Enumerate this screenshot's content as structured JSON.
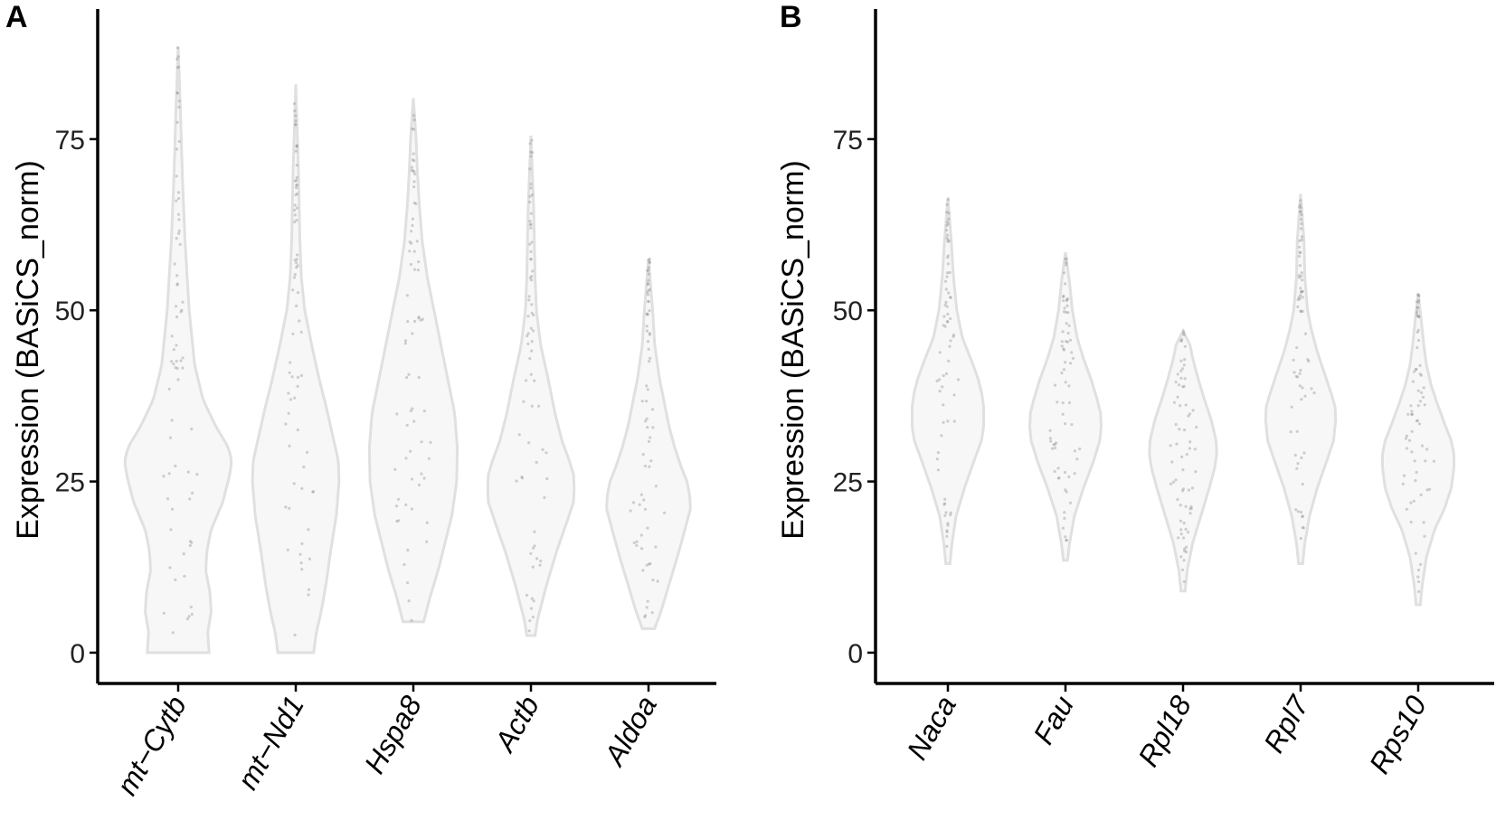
{
  "chart_data": [
    {
      "type": "violin",
      "panel_label": "A",
      "ylabel": "Expression (BASiCS_norm)",
      "yticks": [
        0,
        25,
        50,
        75
      ],
      "ylim": [
        -4.5,
        94
      ],
      "colors": {
        "fill": "#f7f7f7",
        "outline": "#e0e0e0",
        "points": "#9a9a9a"
      },
      "categories": [
        "mt−Cytb",
        "mt−Nd1",
        "Hspa8",
        "Actb",
        "Aldoa"
      ],
      "series": [
        {
          "min": 0,
          "max": 88.5,
          "profile": [
            [
              0,
              4.5
            ],
            [
              3,
              4.3
            ],
            [
              6,
              4.8
            ],
            [
              9,
              4.6
            ],
            [
              12,
              4.0
            ],
            [
              15,
              4.2
            ],
            [
              18,
              4.8
            ],
            [
              22,
              6.5
            ],
            [
              26,
              7.5
            ],
            [
              28,
              7.8
            ],
            [
              30,
              7.3
            ],
            [
              33,
              5.5
            ],
            [
              37,
              3.6
            ],
            [
              42,
              2.4
            ],
            [
              50,
              1.6
            ],
            [
              60,
              1.0
            ],
            [
              70,
              0.6
            ],
            [
              80,
              0.3
            ],
            [
              88.5,
              0
            ]
          ]
        },
        {
          "min": 0,
          "max": 83,
          "profile": [
            [
              0,
              2.6
            ],
            [
              3,
              3.0
            ],
            [
              6,
              3.7
            ],
            [
              10,
              4.4
            ],
            [
              15,
              5.1
            ],
            [
              20,
              5.9
            ],
            [
              25,
              6.3
            ],
            [
              28,
              6.2
            ],
            [
              32,
              5.3
            ],
            [
              36,
              4.4
            ],
            [
              40,
              3.4
            ],
            [
              45,
              2.3
            ],
            [
              50,
              1.3
            ],
            [
              55,
              0.8
            ],
            [
              60,
              0.6
            ],
            [
              70,
              0.4
            ],
            [
              83,
              0
            ]
          ]
        },
        {
          "min": 4.5,
          "max": 81,
          "profile": [
            [
              4.5,
              1.5
            ],
            [
              8,
              2.4
            ],
            [
              12,
              3.6
            ],
            [
              16,
              4.6
            ],
            [
              20,
              5.6
            ],
            [
              25,
              6.3
            ],
            [
              30,
              6.4
            ],
            [
              35,
              6.0
            ],
            [
              40,
              5.0
            ],
            [
              45,
              4.0
            ],
            [
              50,
              3.0
            ],
            [
              55,
              2.0
            ],
            [
              60,
              1.3
            ],
            [
              65,
              0.9
            ],
            [
              70,
              0.6
            ],
            [
              75,
              0.4
            ],
            [
              81,
              0
            ]
          ]
        },
        {
          "min": 2.5,
          "max": 75.5,
          "profile": [
            [
              2.5,
              0.6
            ],
            [
              5,
              1.0
            ],
            [
              10,
              2.3
            ],
            [
              15,
              3.8
            ],
            [
              19,
              5.2
            ],
            [
              22,
              6.2
            ],
            [
              24,
              6.3
            ],
            [
              26,
              6.2
            ],
            [
              28,
              5.6
            ],
            [
              31,
              4.5
            ],
            [
              35,
              3.5
            ],
            [
              40,
              2.5
            ],
            [
              45,
              1.4
            ],
            [
              50,
              0.8
            ],
            [
              55,
              0.6
            ],
            [
              65,
              0.4
            ],
            [
              75.5,
              0
            ]
          ]
        },
        {
          "min": 3.5,
          "max": 57.5,
          "profile": [
            [
              3.5,
              0.9
            ],
            [
              6,
              1.8
            ],
            [
              10,
              3.0
            ],
            [
              14,
              4.2
            ],
            [
              18,
              5.3
            ],
            [
              21,
              6.1
            ],
            [
              23,
              6.0
            ],
            [
              25,
              5.6
            ],
            [
              27,
              4.8
            ],
            [
              30,
              3.8
            ],
            [
              33,
              3.0
            ],
            [
              36,
              2.4
            ],
            [
              40,
              1.6
            ],
            [
              45,
              0.9
            ],
            [
              50,
              0.6
            ],
            [
              57.5,
              0
            ]
          ]
        }
      ]
    },
    {
      "type": "violin",
      "panel_label": "B",
      "ylabel": "Expression (BASiCS_norm)",
      "yticks": [
        0,
        25,
        50,
        75
      ],
      "ylim": [
        -4.5,
        94
      ],
      "colors": {
        "fill": "#f7f7f7",
        "outline": "#e0e0e0",
        "points": "#9a9a9a"
      },
      "categories": [
        "Naca",
        "Fau",
        "Rpl18",
        "Rpl7",
        "Rps10"
      ],
      "series": [
        {
          "min": 13,
          "max": 66.5,
          "profile": [
            [
              13,
              0.3
            ],
            [
              16,
              0.6
            ],
            [
              20,
              1.2
            ],
            [
              24,
              2.4
            ],
            [
              28,
              3.8
            ],
            [
              31,
              4.9
            ],
            [
              33,
              5.2
            ],
            [
              36,
              5.2
            ],
            [
              38,
              4.9
            ],
            [
              40,
              4.4
            ],
            [
              43,
              3.3
            ],
            [
              46,
              2.1
            ],
            [
              50,
              1.3
            ],
            [
              55,
              0.8
            ],
            [
              60,
              0.5
            ],
            [
              66.5,
              0
            ]
          ]
        },
        {
          "min": 13.5,
          "max": 58.5,
          "profile": [
            [
              13.5,
              0.3
            ],
            [
              16,
              0.6
            ],
            [
              20,
              1.3
            ],
            [
              24,
              2.6
            ],
            [
              28,
              4.1
            ],
            [
              31,
              5.0
            ],
            [
              33,
              5.2
            ],
            [
              35,
              5.1
            ],
            [
              37,
              4.6
            ],
            [
              40,
              3.7
            ],
            [
              43,
              2.6
            ],
            [
              46,
              1.7
            ],
            [
              50,
              1.0
            ],
            [
              54,
              0.6
            ],
            [
              58.5,
              0
            ]
          ]
        },
        {
          "min": 9,
          "max": 47,
          "profile": [
            [
              9,
              0.3
            ],
            [
              12,
              0.6
            ],
            [
              16,
              1.4
            ],
            [
              20,
              2.6
            ],
            [
              24,
              3.8
            ],
            [
              27,
              4.6
            ],
            [
              29,
              4.9
            ],
            [
              31,
              4.8
            ],
            [
              34,
              4.1
            ],
            [
              37,
              3.1
            ],
            [
              40,
              2.2
            ],
            [
              43,
              1.4
            ],
            [
              45,
              1.0
            ],
            [
              47,
              0
            ]
          ]
        },
        {
          "min": 13,
          "max": 67,
          "profile": [
            [
              13,
              0.3
            ],
            [
              16,
              0.6
            ],
            [
              20,
              1.3
            ],
            [
              24,
              2.4
            ],
            [
              28,
              3.8
            ],
            [
              31,
              4.8
            ],
            [
              34,
              5.1
            ],
            [
              36,
              5.0
            ],
            [
              38,
              4.4
            ],
            [
              41,
              3.4
            ],
            [
              44,
              2.4
            ],
            [
              47,
              1.6
            ],
            [
              50,
              1.0
            ],
            [
              55,
              0.6
            ],
            [
              60,
              0.5
            ],
            [
              67,
              0
            ]
          ]
        },
        {
          "min": 7,
          "max": 52.5,
          "profile": [
            [
              7,
              0.3
            ],
            [
              10,
              0.6
            ],
            [
              14,
              1.2
            ],
            [
              18,
              2.4
            ],
            [
              21,
              3.8
            ],
            [
              24,
              4.8
            ],
            [
              27,
              5.2
            ],
            [
              29,
              5.2
            ],
            [
              31,
              4.8
            ],
            [
              33,
              4.0
            ],
            [
              36,
              2.9
            ],
            [
              39,
              1.9
            ],
            [
              42,
              1.2
            ],
            [
              45,
              0.8
            ],
            [
              48,
              0.5
            ],
            [
              52.5,
              0
            ]
          ]
        }
      ]
    }
  ]
}
